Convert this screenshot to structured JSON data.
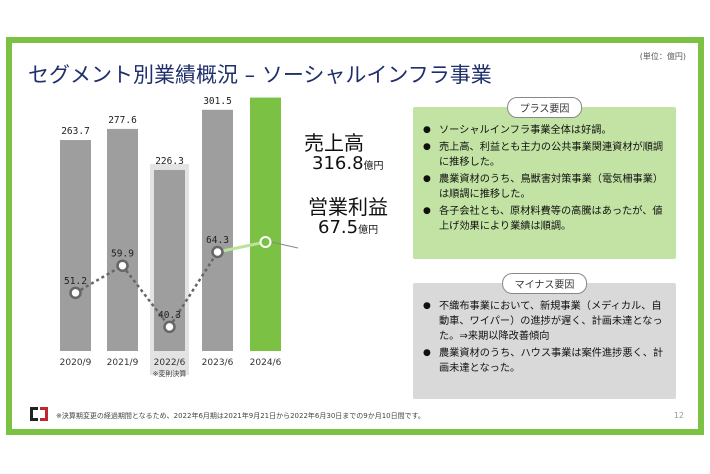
{
  "slide": {
    "title": "セグメント別業績概況 – ソーシャルインフラ事業",
    "unit": "(単位：億円)",
    "footnote": "※決算期変更の経過期間となるため、2022年6月期は2021年9月21日から2022年6月30日までの9か月10日間です。",
    "page_number": "12"
  },
  "legend": {
    "sales_label": "売上高",
    "sales_value": "316.8",
    "profit_label": "営業利益",
    "profit_value": "67.5",
    "unit_suffix": "億円"
  },
  "chart_data": {
    "type": "bar",
    "categories": [
      "2020/9",
      "2021/9",
      "2022/6",
      "2023/6",
      "2024/6"
    ],
    "series": [
      {
        "name": "売上高",
        "values": [
          263.7,
          277.6,
          226.3,
          301.5,
          316.8
        ],
        "labels": [
          "263.7",
          "277.6",
          "226.3",
          "301.5",
          ""
        ]
      },
      {
        "name": "営業利益",
        "values": [
          51.2,
          59.9,
          40.3,
          64.3,
          67.5
        ],
        "labels": [
          "51.2",
          "59.9",
          "40.3",
          "64.3",
          ""
        ]
      }
    ],
    "annotation": "※変則決算",
    "colors": {
      "bar": "#9e9e9e",
      "bar_highlight": "#7bc143",
      "irregular_bg": "#e3e3e3",
      "line": "#666666",
      "line_highlight": "#bde39a"
    }
  },
  "plus_panel": {
    "tag": "プラス要因",
    "items": [
      "ソーシャルインフラ事業全体は好調。",
      "売上高、利益とも主力の公共事業関連資材が順調に推移した。",
      "農業資材のうち、鳥獣害対策事業（電気柵事業）は順調に推移した。",
      "各子会社とも、原材料費等の高騰はあったが、値上げ効果により業績は順調。"
    ]
  },
  "minus_panel": {
    "tag": "マイナス要因",
    "items": [
      "不織布事業において、新規事業（メディカル、自動車、ワイパー）の進捗が遅く、計画未達となった。⇒来期以降改善傾向",
      "農業資材のうち、ハウス事業は案件進捗悪く、計画未達となった。"
    ]
  }
}
